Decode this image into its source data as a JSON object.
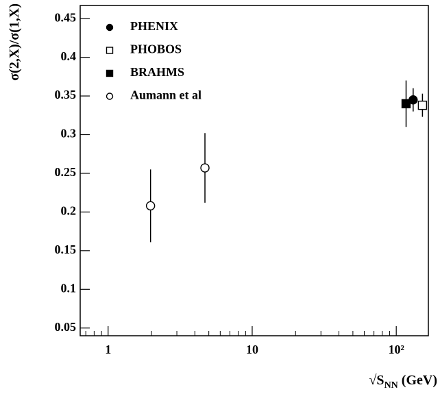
{
  "chart_data": {
    "type": "scatter",
    "y_label": "σ(2,X)/σ(1,X)",
    "x_label": [
      "√S",
      "NN",
      " (GeV)"
    ],
    "log_x": true,
    "xlim": [
      0.64,
      167
    ],
    "ylim": [
      0.04,
      0.467
    ],
    "xticks": [
      1,
      10,
      {
        "value": 100,
        "label": "10²"
      }
    ],
    "xminorticks": [
      0.7,
      0.8,
      0.9,
      2,
      3,
      4,
      5,
      6,
      7,
      8,
      9,
      20,
      30,
      40,
      50,
      60,
      70,
      80,
      90
    ],
    "yticks": [
      0.05,
      0.1,
      0.15,
      0.2,
      0.25,
      0.3,
      0.35,
      0.4,
      0.45
    ],
    "series": [
      {
        "name": "PHENIX",
        "marker": "circle",
        "filled": true,
        "color": "#000000",
        "x": [
          131
        ],
        "values": [
          0.345
        ],
        "errors": [
          0.015
        ]
      },
      {
        "name": "PHOBOS",
        "marker": "square",
        "filled": false,
        "color": "#000000",
        "x": [
          152
        ],
        "values": [
          0.338
        ],
        "errors": [
          0.015
        ]
      },
      {
        "name": "BRAHMS",
        "marker": "square",
        "filled": true,
        "color": "#000000",
        "x": [
          117
        ],
        "values": [
          0.34
        ],
        "errors": [
          0.03
        ]
      },
      {
        "name": "Aumann et al",
        "marker": "circle",
        "filled": false,
        "color": "#000000",
        "x": [
          1.97,
          4.7
        ],
        "values": [
          0.208,
          0.257
        ],
        "errors": [
          0.047,
          0.045
        ]
      }
    ]
  }
}
